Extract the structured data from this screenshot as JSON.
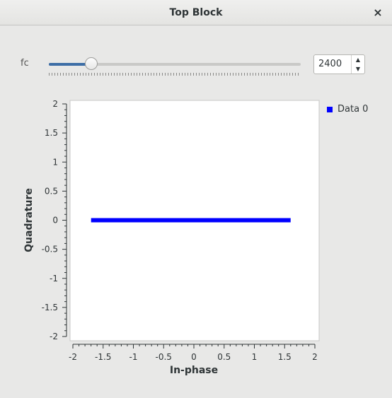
{
  "window": {
    "title": "Top Block",
    "close_glyph": "×"
  },
  "control": {
    "label": "fc",
    "spin_value": "2400",
    "spin_up_glyph": "▲",
    "spin_down_glyph": "▼",
    "slider_fraction": 0.14,
    "accent_color": "#3d6ea6"
  },
  "legend": {
    "entries": [
      {
        "name": "Data 0",
        "color": "#0000ff"
      }
    ]
  },
  "chart_data": {
    "type": "scatter",
    "xlabel": "In-phase",
    "ylabel": "Quadrature",
    "xlim": [
      -2,
      2
    ],
    "ylim": [
      -2,
      2
    ],
    "xticks": [
      "-2",
      "-1.5",
      "-1",
      "-0.5",
      "0",
      "0.5",
      "1",
      "1.5",
      "2"
    ],
    "yticks": [
      "2",
      "1.5",
      "1",
      "0.5",
      "0",
      "-0.5",
      "-1",
      "-1.5",
      "-2"
    ],
    "grid": false,
    "legend_position": "right",
    "series": [
      {
        "name": "Data 0",
        "color": "#0000ff",
        "x_range": [
          -1.67,
          1.57
        ],
        "y": 0
      }
    ]
  }
}
